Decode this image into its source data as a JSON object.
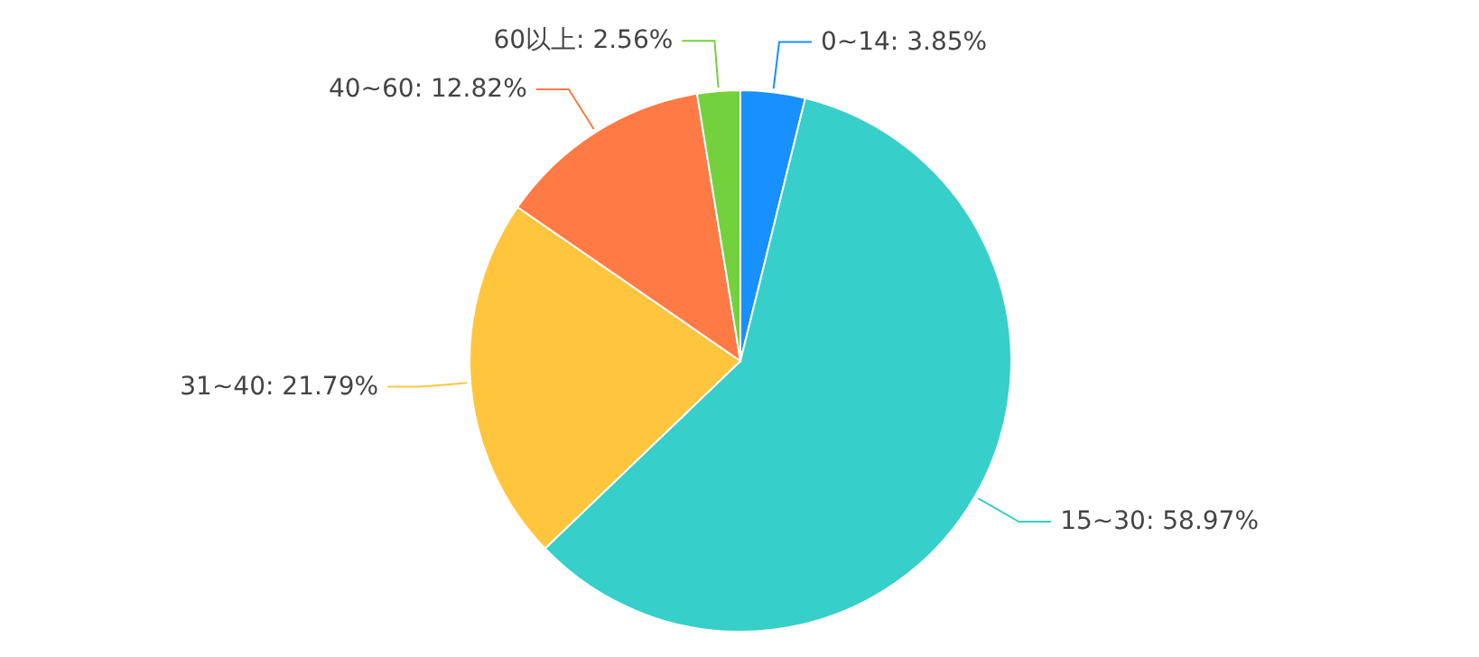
{
  "chart_data": {
    "type": "pie",
    "categories": [
      "0~14",
      "15~30",
      "31~40",
      "40~60",
      "60以上"
    ],
    "values": [
      3.85,
      58.97,
      21.79,
      12.82,
      2.56
    ],
    "value_labels": [
      "3.85%",
      "58.97%",
      "21.79%",
      "12.82%",
      "2.56%"
    ],
    "colors": [
      "#1890ff",
      "#36cfc9",
      "#ffc53d",
      "#ff7a45",
      "#73d13d"
    ]
  }
}
